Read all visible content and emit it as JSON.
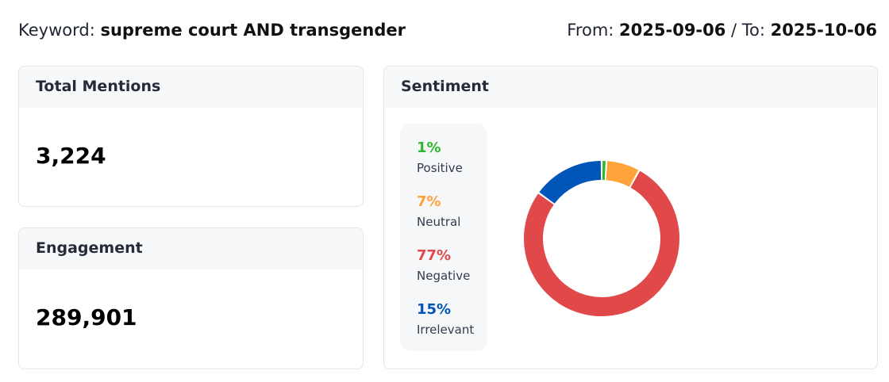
{
  "header": {
    "keyword_label": "Keyword: ",
    "keyword": "supreme court AND transgender",
    "from_label": "From: ",
    "from": "2025-09-06",
    "to_label": " / To: ",
    "to": "2025-10-06"
  },
  "total_mentions": {
    "title": "Total Mentions",
    "value": "3,224"
  },
  "engagement": {
    "title": "Engagement",
    "value": "289,901"
  },
  "sentiment": {
    "title": "Sentiment",
    "items": [
      {
        "pct": "1%",
        "label": "Positive",
        "value": 1,
        "color": "#2eb82e"
      },
      {
        "pct": "7%",
        "label": "Neutral",
        "value": 7,
        "color": "#ffa33b"
      },
      {
        "pct": "77%",
        "label": "Negative",
        "value": 77,
        "color": "#e0484a"
      },
      {
        "pct": "15%",
        "label": "Irrelevant",
        "value": 15,
        "color": "#0056b8"
      }
    ]
  }
}
